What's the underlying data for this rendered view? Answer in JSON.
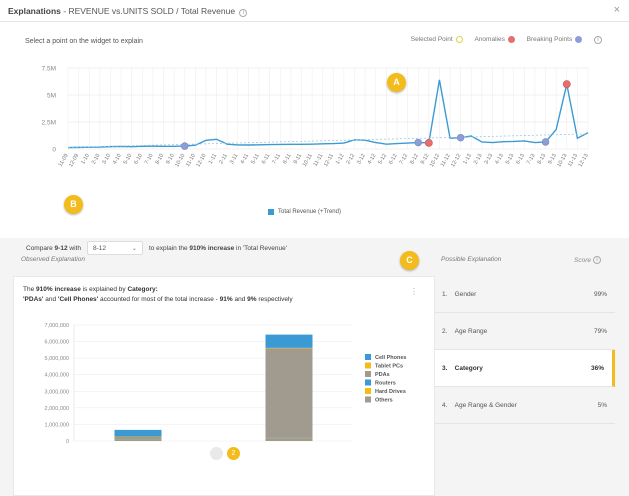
{
  "header": {
    "title_bold": "Explanations",
    "title_rest": " - REVENUE vs.UNITS SOLD / Total Revenue",
    "info_icon": "i",
    "close_icon": "×"
  },
  "widget": {
    "hint": "Select a point on the widget to explain",
    "legend": [
      {
        "label": "Selected Point",
        "color": "#e8e25a"
      },
      {
        "label": "Anomalies",
        "color": "#e56e6e"
      },
      {
        "label": "Breaking Points",
        "color": "#8f9dd6"
      }
    ],
    "series_legend": "Total Revenue (+Trend)"
  },
  "chart_data": {
    "type": "line",
    "ylim": [
      0,
      7500000
    ],
    "yticks": [
      "0",
      "2.5M",
      "5M",
      "7.5M"
    ],
    "x": [
      "11-09",
      "12-09",
      "1-10",
      "2-10",
      "3-10",
      "4-10",
      "5-10",
      "6-10",
      "7-10",
      "8-10",
      "9-10",
      "10-10",
      "11-10",
      "12-10",
      "1-11",
      "2-11",
      "3-11",
      "4-11",
      "5-11",
      "6-11",
      "7-11",
      "8-11",
      "9-11",
      "10-11",
      "11-11",
      "12-11",
      "1-12",
      "2-12",
      "3-12",
      "4-12",
      "5-12",
      "6-12",
      "7-12",
      "8-12",
      "9-12",
      "10-12",
      "11-12",
      "12-12",
      "1-13",
      "2-13",
      "3-13",
      "4-13",
      "5-13",
      "6-13",
      "7-13",
      "8-13",
      "9-13",
      "10-13",
      "11-13",
      "12-13"
    ],
    "series": [
      {
        "name": "Total Revenue (+Trend)",
        "values": [
          130000,
          150000,
          170000,
          180000,
          220000,
          240000,
          210000,
          250000,
          260000,
          250000,
          250000,
          270000,
          350000,
          800000,
          900000,
          450000,
          380000,
          370000,
          390000,
          410000,
          420000,
          430000,
          430000,
          450000,
          480000,
          500000,
          550000,
          850000,
          820000,
          600000,
          450000,
          500000,
          550000,
          600000,
          570000,
          6400000,
          1000000,
          1050000,
          1200000,
          650000,
          600000,
          680000,
          700000,
          750000,
          600000,
          650000,
          1800000,
          6000000,
          1000000,
          1500000
        ]
      }
    ],
    "trend": [
      150000,
      1400000
    ],
    "markers": {
      "anomalies": [
        "9-12",
        "10-13"
      ],
      "breaking_points": [
        "10-10",
        "12-12",
        "8-12",
        "8-13"
      ]
    }
  },
  "compare": {
    "prefix": "Compare",
    "point": "9-12",
    "with": "with",
    "selected": "8-12",
    "suffix": "to explain the",
    "change": "910% increase",
    "in_text": "in 'Total Revenue'"
  },
  "callouts": {
    "a": "A",
    "b": "B",
    "c": "C"
  },
  "observed": {
    "heading": "Observed Explanation",
    "line1_a": "The",
    "line1_b": "910% increase",
    "line1_c": "is explained by",
    "line1_d": "Category:",
    "line2_a": "'PDAs'",
    "line2_b": "and",
    "line2_c": "'Cell Phones'",
    "line2_d": "accounted for most of the total increase -",
    "line2_e": "91%",
    "line2_f": "and",
    "line2_g": "9%",
    "line2_h": "respectively",
    "menu_icon": "⋮"
  },
  "bar_chart": {
    "type": "bar",
    "categories": [
      "8-12",
      "9-12"
    ],
    "yticks": [
      "0",
      "1,000,000",
      "2,000,000",
      "3,000,000",
      "4,000,000",
      "5,000,000",
      "6,000,000",
      "7,000,000"
    ],
    "ylim": [
      0,
      7000000
    ],
    "series": [
      {
        "name": "Cell Phones",
        "color": "#3b9ad3",
        "values": [
          400000,
          800000
        ]
      },
      {
        "name": "Tablet PCs",
        "color": "#f3bb1b",
        "values": [
          10000,
          20000
        ]
      },
      {
        "name": "PDAs",
        "color": "#a09a8f",
        "values": [
          150000,
          5400000
        ]
      },
      {
        "name": "Routers",
        "color": "#3b9ad3",
        "values": [
          10000,
          20000
        ]
      },
      {
        "name": "Hard Drives",
        "color": "#f3bb1b",
        "values": [
          10000,
          20000
        ]
      },
      {
        "name": "Others",
        "color": "#a09a8f",
        "values": [
          90000,
          160000
        ]
      }
    ]
  },
  "possible": {
    "heading": "Possible Explanation",
    "score_heading": "Score",
    "items": [
      {
        "rank": "1.",
        "label": "Gender",
        "score": "99%"
      },
      {
        "rank": "2.",
        "label": "Age Range",
        "score": "79%"
      },
      {
        "rank": "3.",
        "label": "Category",
        "score": "36%"
      },
      {
        "rank": "4.",
        "label": "Age Range & Gender",
        "score": "5%"
      }
    ],
    "active_index": 2
  },
  "pager": {
    "active_label": "2"
  }
}
